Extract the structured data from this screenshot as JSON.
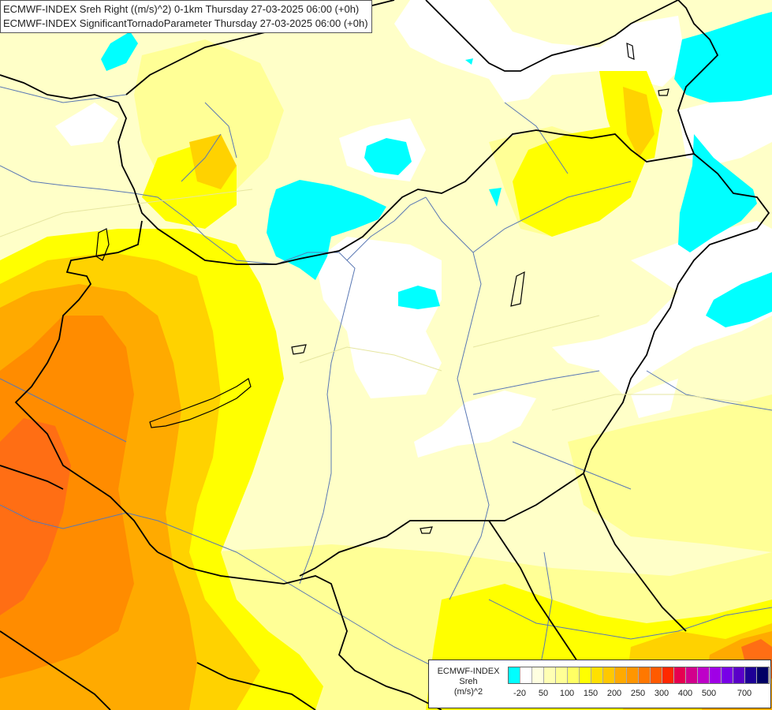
{
  "header": {
    "line1": "ECMWF-INDEX Sreh Right ((m/s)^2) 0-1km Thursday 27-03-2025 06:00 (+0h)",
    "line2": "ECMWF-INDEX SignificantTornadoParameter Thursday 27-03-2025 06:00 (+0h)"
  },
  "legend": {
    "line1": "ECMWF-INDEX",
    "line2": "Sreh",
    "line3": "(m/s)^2",
    "colors": [
      "#00ffff",
      "#ffffff",
      "#ffffe0",
      "#ffffb4",
      "#ffff96",
      "#ffff64",
      "#ffff00",
      "#ffe000",
      "#ffc800",
      "#ffaa00",
      "#ff9600",
      "#ff7800",
      "#ff5a00",
      "#ff2800",
      "#e60050",
      "#d2008c",
      "#be00c8",
      "#a000e6",
      "#7800e6",
      "#5a00c8",
      "#1e0096",
      "#000064"
    ],
    "ticks": [
      "-20",
      "50",
      "100",
      "150",
      "200",
      "250",
      "300",
      "400",
      "500",
      "700"
    ]
  },
  "map": {
    "colors": {
      "background": "#ffffc8",
      "white": "#ffffff",
      "pale_yellow": "#ffff96",
      "yellow": "#ffff00",
      "gold": "#ffd200",
      "orange": "#ffaa00",
      "dark_orange": "#ff8c00",
      "red_orange": "#ff6e14",
      "cyan": "#00ffff",
      "river": "#5a78b4",
      "border": "#000000"
    }
  }
}
